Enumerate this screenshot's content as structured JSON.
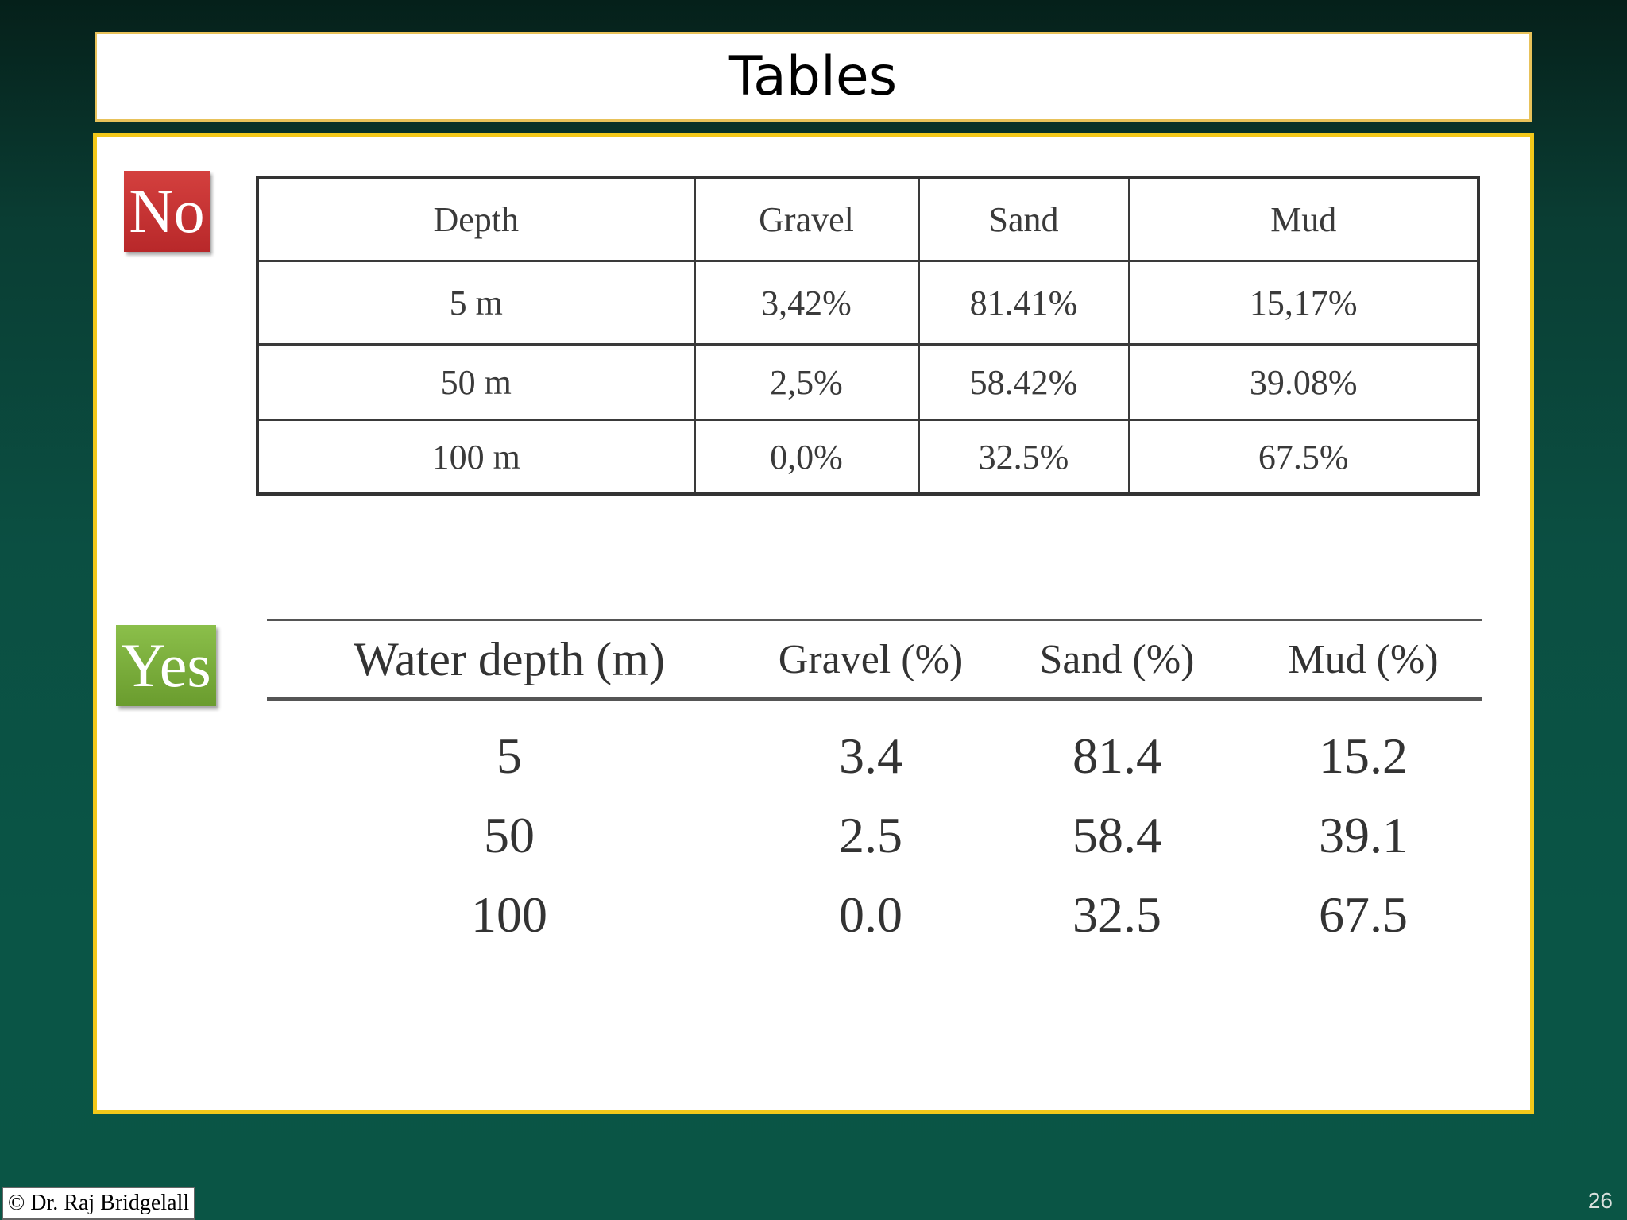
{
  "slide": {
    "title": "Tables",
    "page_number": "26",
    "copyright": "© Dr. Raj Bridgelall"
  },
  "colors": {
    "background": "#0a5545",
    "title_border": "#e8c25a",
    "content_border": "#f2c81a",
    "no_badge": "#c83234",
    "yes_badge": "#7aad3c"
  },
  "bad_example": {
    "badge": "No",
    "headers": [
      "Depth",
      "Gravel",
      "Sand",
      "Mud"
    ],
    "rows": [
      [
        "5 m",
        "3,42%",
        "81.41%",
        "15,17%"
      ],
      [
        "50 m",
        "2,5%",
        "58.42%",
        "39.08%"
      ],
      [
        "100 m",
        "0,0%",
        "32.5%",
        "67.5%"
      ]
    ]
  },
  "good_example": {
    "badge": "Yes",
    "headers": [
      "Water depth (m)",
      "Gravel (%)",
      "Sand (%)",
      "Mud (%)"
    ],
    "rows": [
      [
        "5",
        "3.4",
        "81.4",
        "15.2"
      ],
      [
        "50",
        "2.5",
        "58.4",
        "39.1"
      ],
      [
        "100",
        "0.0",
        "32.5",
        "67.5"
      ]
    ]
  }
}
